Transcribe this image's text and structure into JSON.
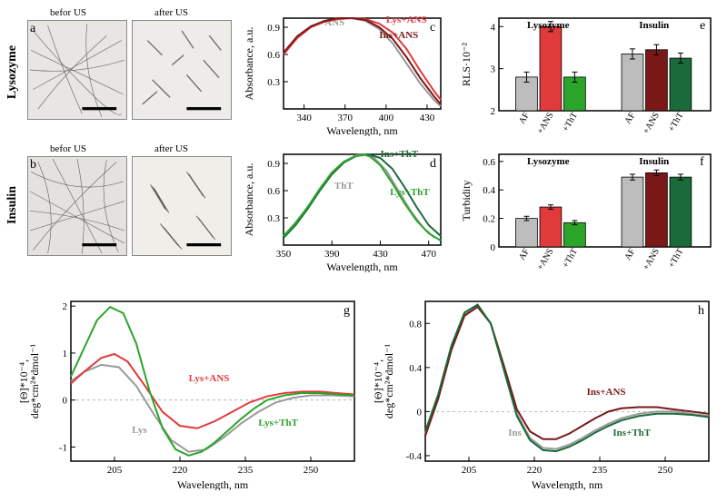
{
  "colors": {
    "red": "#e13a3a",
    "darkred": "#7a1818",
    "gray": "#888888",
    "lightgray": "#bdbdbd",
    "green": "#2aa52a",
    "darkgreen": "#1a6a3a",
    "black": "#000000",
    "bg": "#ffffff"
  },
  "row1": {
    "lysozyme_label": "Lysozyme",
    "insulin_label": "Insulin",
    "before_us": "befor US",
    "after_us": "after US"
  },
  "panel_c": {
    "label": "c",
    "ylabel": "Absorbance, a.u.",
    "xlabel": "Wavelength, nm",
    "xlim": [
      325,
      440
    ],
    "ylim": [
      0,
      1.0
    ],
    "xticks": [
      340,
      370,
      400,
      430
    ],
    "yticks": [
      0.3,
      0.6,
      0.9
    ],
    "series": [
      {
        "name": "ANS",
        "color": "#999999",
        "label_pos": [
          355,
          0.92
        ],
        "pts": [
          [
            325,
            0.62
          ],
          [
            335,
            0.79
          ],
          [
            345,
            0.9
          ],
          [
            355,
            0.96
          ],
          [
            365,
            0.99
          ],
          [
            375,
            1.0
          ],
          [
            385,
            0.97
          ],
          [
            395,
            0.88
          ],
          [
            405,
            0.72
          ],
          [
            415,
            0.5
          ],
          [
            425,
            0.28
          ],
          [
            435,
            0.1
          ],
          [
            440,
            0.03
          ]
        ]
      },
      {
        "name": "Lys+ANS",
        "color": "#e13a3a",
        "label_pos": [
          400,
          0.95
        ],
        "pts": [
          [
            325,
            0.6
          ],
          [
            335,
            0.78
          ],
          [
            345,
            0.9
          ],
          [
            355,
            0.96
          ],
          [
            365,
            0.99
          ],
          [
            375,
            1.0
          ],
          [
            385,
            0.99
          ],
          [
            395,
            0.94
          ],
          [
            405,
            0.84
          ],
          [
            415,
            0.66
          ],
          [
            425,
            0.42
          ],
          [
            435,
            0.2
          ],
          [
            440,
            0.1
          ]
        ]
      },
      {
        "name": "Ins+ANS",
        "color": "#7a1818",
        "label_pos": [
          395,
          0.78
        ],
        "pts": [
          [
            325,
            0.62
          ],
          [
            335,
            0.8
          ],
          [
            345,
            0.91
          ],
          [
            355,
            0.97
          ],
          [
            365,
            1.0
          ],
          [
            375,
            1.0
          ],
          [
            385,
            0.98
          ],
          [
            395,
            0.9
          ],
          [
            405,
            0.77
          ],
          [
            415,
            0.57
          ],
          [
            425,
            0.34
          ],
          [
            435,
            0.14
          ],
          [
            440,
            0.05
          ]
        ]
      }
    ]
  },
  "panel_d": {
    "label": "d",
    "ylabel": "Absorbance, a.u.",
    "xlabel": "Wavelength, nm",
    "xlim": [
      350,
      480
    ],
    "ylim": [
      0,
      1.0
    ],
    "xticks": [
      350,
      390,
      430,
      470
    ],
    "yticks": [
      0.3,
      0.6,
      0.9
    ],
    "series": [
      {
        "name": "ThT",
        "color": "#999999",
        "label_pos": [
          392,
          0.62
        ],
        "pts": [
          [
            350,
            0.1
          ],
          [
            360,
            0.25
          ],
          [
            370,
            0.42
          ],
          [
            380,
            0.62
          ],
          [
            390,
            0.8
          ],
          [
            400,
            0.92
          ],
          [
            410,
            0.99
          ],
          [
            418,
            1.0
          ],
          [
            425,
            0.96
          ],
          [
            435,
            0.82
          ],
          [
            445,
            0.6
          ],
          [
            455,
            0.38
          ],
          [
            465,
            0.2
          ],
          [
            475,
            0.08
          ]
        ]
      },
      {
        "name": "Ins+ThT",
        "color": "#1a6a3a",
        "label_pos": [
          430,
          0.97
        ],
        "pts": [
          [
            350,
            0.08
          ],
          [
            360,
            0.22
          ],
          [
            370,
            0.4
          ],
          [
            380,
            0.6
          ],
          [
            390,
            0.78
          ],
          [
            400,
            0.91
          ],
          [
            410,
            0.98
          ],
          [
            420,
            1.0
          ],
          [
            430,
            0.96
          ],
          [
            440,
            0.84
          ],
          [
            450,
            0.64
          ],
          [
            460,
            0.42
          ],
          [
            470,
            0.22
          ],
          [
            480,
            0.1
          ]
        ]
      },
      {
        "name": "Lys+ThT",
        "color": "#2aa52a",
        "label_pos": [
          438,
          0.55
        ],
        "pts": [
          [
            350,
            0.1
          ],
          [
            360,
            0.24
          ],
          [
            370,
            0.42
          ],
          [
            380,
            0.62
          ],
          [
            390,
            0.8
          ],
          [
            400,
            0.92
          ],
          [
            410,
            0.98
          ],
          [
            416,
            1.0
          ],
          [
            422,
            0.97
          ],
          [
            430,
            0.88
          ],
          [
            440,
            0.68
          ],
          [
            450,
            0.46
          ],
          [
            460,
            0.27
          ],
          [
            470,
            0.13
          ],
          [
            480,
            0.05
          ]
        ]
      }
    ]
  },
  "panel_e": {
    "label": "e",
    "ylabel": "RLS·10⁻²",
    "lys_title": "Lysozyme",
    "ins_title": "Insulin",
    "ylim": [
      2,
      4.2
    ],
    "yticks": [
      2,
      3,
      4
    ],
    "cats": [
      "AF",
      "+ANS",
      "+ThT"
    ],
    "groups": [
      {
        "name": "Lysozyme",
        "colors": [
          "#bdbdbd",
          "#e13a3a",
          "#2aa52a"
        ],
        "vals": [
          2.8,
          4.0,
          2.8
        ],
        "err": [
          0.12,
          0.12,
          0.12
        ]
      },
      {
        "name": "Insulin",
        "colors": [
          "#bdbdbd",
          "#7a1818",
          "#1a6a3a"
        ],
        "vals": [
          3.35,
          3.45,
          3.25
        ],
        "err": [
          0.12,
          0.12,
          0.12
        ]
      }
    ]
  },
  "panel_f": {
    "label": "f",
    "ylabel": "Turbidity",
    "lys_title": "Lysozyme",
    "ins_title": "Insulin",
    "ylim": [
      0,
      0.65
    ],
    "yticks": [
      0,
      0.2,
      0.4,
      0.6
    ],
    "cats": [
      "AF",
      "+ANS",
      "+ThT"
    ],
    "groups": [
      {
        "name": "Lysozyme",
        "colors": [
          "#bdbdbd",
          "#e13a3a",
          "#2aa52a"
        ],
        "vals": [
          0.2,
          0.28,
          0.17
        ],
        "err": [
          0.015,
          0.015,
          0.015
        ]
      },
      {
        "name": "Insulin",
        "colors": [
          "#bdbdbd",
          "#7a1818",
          "#1a6a3a"
        ],
        "vals": [
          0.49,
          0.52,
          0.49
        ],
        "err": [
          0.02,
          0.02,
          0.02
        ]
      }
    ]
  },
  "panel_g": {
    "label": "g",
    "ylabel": "[Θ]*10⁻⁴,\ndeg*cm²*dmol⁻¹",
    "xlabel": "Wavelength, nm",
    "xlim": [
      195,
      260
    ],
    "ylim": [
      -1.3,
      2.1
    ],
    "xticks": [
      205,
      220,
      235,
      250
    ],
    "yticks": [
      -1,
      0,
      1,
      2
    ],
    "series": [
      {
        "name": "Lys",
        "color": "#999999",
        "label_pos": [
          209,
          -0.7
        ],
        "pts": [
          [
            195,
            0.4
          ],
          [
            198,
            0.6
          ],
          [
            202,
            0.75
          ],
          [
            206,
            0.7
          ],
          [
            210,
            0.3
          ],
          [
            214,
            -0.3
          ],
          [
            218,
            -0.85
          ],
          [
            222,
            -1.1
          ],
          [
            226,
            -1.05
          ],
          [
            230,
            -0.8
          ],
          [
            234,
            -0.5
          ],
          [
            238,
            -0.25
          ],
          [
            242,
            -0.05
          ],
          [
            246,
            0.05
          ],
          [
            250,
            0.1
          ],
          [
            255,
            0.1
          ],
          [
            260,
            0.08
          ]
        ]
      },
      {
        "name": "Lys+ANS",
        "color": "#e13a3a",
        "label_pos": [
          222,
          0.4
        ],
        "pts": [
          [
            195,
            0.35
          ],
          [
            198,
            0.6
          ],
          [
            202,
            0.9
          ],
          [
            205,
            0.98
          ],
          [
            208,
            0.82
          ],
          [
            212,
            0.3
          ],
          [
            216,
            -0.25
          ],
          [
            220,
            -0.55
          ],
          [
            224,
            -0.6
          ],
          [
            228,
            -0.45
          ],
          [
            232,
            -0.25
          ],
          [
            236,
            -0.05
          ],
          [
            240,
            0.08
          ],
          [
            244,
            0.15
          ],
          [
            248,
            0.18
          ],
          [
            252,
            0.18
          ],
          [
            256,
            0.15
          ],
          [
            260,
            0.12
          ]
        ]
      },
      {
        "name": "Lys+ThT",
        "color": "#2aa52a",
        "label_pos": [
          238,
          -0.55
        ],
        "pts": [
          [
            195,
            0.5
          ],
          [
            198,
            1.1
          ],
          [
            201,
            1.7
          ],
          [
            204,
            1.98
          ],
          [
            207,
            1.85
          ],
          [
            210,
            1.2
          ],
          [
            213,
            0.2
          ],
          [
            216,
            -0.6
          ],
          [
            219,
            -1.05
          ],
          [
            222,
            -1.18
          ],
          [
            225,
            -1.1
          ],
          [
            228,
            -0.9
          ],
          [
            231,
            -0.65
          ],
          [
            234,
            -0.4
          ],
          [
            237,
            -0.18
          ],
          [
            240,
            0.0
          ],
          [
            244,
            0.1
          ],
          [
            248,
            0.15
          ],
          [
            252,
            0.15
          ],
          [
            256,
            0.12
          ],
          [
            260,
            0.1
          ]
        ]
      }
    ]
  },
  "panel_h": {
    "label": "h",
    "ylabel": "[Θ]*10⁻⁴,\ndeg*cm²*dmol⁻¹",
    "xlabel": "Wavelength, nm",
    "xlim": [
      195,
      260
    ],
    "ylim": [
      -0.45,
      1.0
    ],
    "xticks": [
      205,
      220,
      235,
      250
    ],
    "yticks": [
      -0.4,
      0,
      0.4,
      0.8
    ],
    "series": [
      {
        "name": "Ins",
        "color": "#999999",
        "label_pos": [
          214,
          -0.22
        ],
        "pts": [
          [
            195,
            -0.2
          ],
          [
            198,
            0.15
          ],
          [
            201,
            0.58
          ],
          [
            204,
            0.88
          ],
          [
            207,
            0.96
          ],
          [
            210,
            0.8
          ],
          [
            213,
            0.4
          ],
          [
            216,
            -0.02
          ],
          [
            219,
            -0.24
          ],
          [
            222,
            -0.33
          ],
          [
            225,
            -0.34
          ],
          [
            228,
            -0.3
          ],
          [
            231,
            -0.24
          ],
          [
            234,
            -0.17
          ],
          [
            237,
            -0.11
          ],
          [
            240,
            -0.06
          ],
          [
            244,
            -0.02
          ],
          [
            248,
            0.0
          ],
          [
            252,
            0.0
          ],
          [
            256,
            -0.02
          ],
          [
            260,
            -0.04
          ]
        ]
      },
      {
        "name": "Ins+ANS",
        "color": "#7a1818",
        "label_pos": [
          232,
          0.15
        ],
        "pts": [
          [
            195,
            -0.22
          ],
          [
            198,
            0.12
          ],
          [
            201,
            0.56
          ],
          [
            204,
            0.87
          ],
          [
            207,
            0.95
          ],
          [
            210,
            0.8
          ],
          [
            213,
            0.42
          ],
          [
            216,
            0.02
          ],
          [
            219,
            -0.18
          ],
          [
            222,
            -0.25
          ],
          [
            225,
            -0.25
          ],
          [
            228,
            -0.2
          ],
          [
            231,
            -0.13
          ],
          [
            234,
            -0.06
          ],
          [
            237,
            0.0
          ],
          [
            240,
            0.03
          ],
          [
            244,
            0.04
          ],
          [
            248,
            0.04
          ],
          [
            252,
            0.02
          ],
          [
            256,
            0.0
          ],
          [
            260,
            -0.02
          ]
        ]
      },
      {
        "name": "Ins+ThT",
        "color": "#1a6a3a",
        "label_pos": [
          238,
          -0.22
        ],
        "pts": [
          [
            195,
            -0.18
          ],
          [
            198,
            0.16
          ],
          [
            201,
            0.6
          ],
          [
            204,
            0.9
          ],
          [
            207,
            0.97
          ],
          [
            210,
            0.8
          ],
          [
            213,
            0.38
          ],
          [
            216,
            -0.04
          ],
          [
            219,
            -0.26
          ],
          [
            222,
            -0.35
          ],
          [
            225,
            -0.36
          ],
          [
            228,
            -0.32
          ],
          [
            231,
            -0.26
          ],
          [
            234,
            -0.19
          ],
          [
            237,
            -0.13
          ],
          [
            240,
            -0.08
          ],
          [
            244,
            -0.04
          ],
          [
            248,
            -0.02
          ],
          [
            252,
            -0.02
          ],
          [
            256,
            -0.03
          ],
          [
            260,
            -0.05
          ]
        ]
      }
    ]
  }
}
